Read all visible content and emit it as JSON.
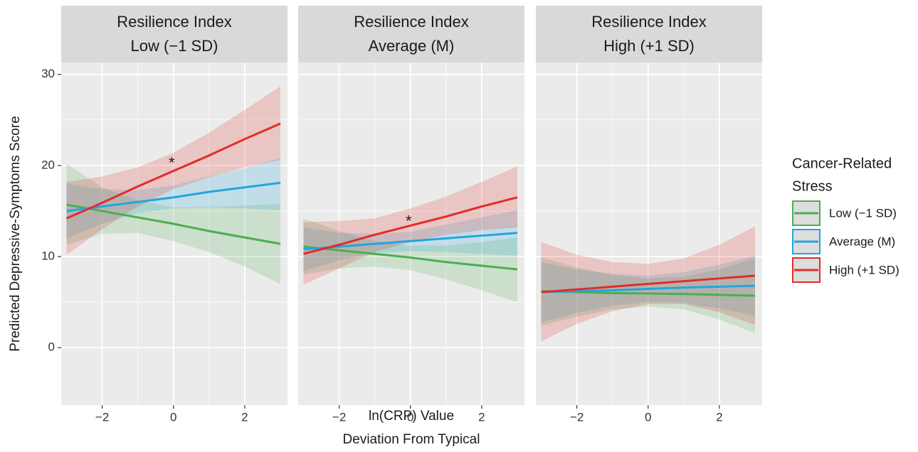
{
  "chart_data": {
    "type": "line",
    "y_label": "Predicted Depressive-Symptoms Score",
    "x_label": [
      "ln(CRP) Value",
      "Deviation From Typical"
    ],
    "legend_title": [
      "Cancer-Related",
      "Stress"
    ],
    "legend": "right",
    "grid": true,
    "xlim": [
      -3.15,
      3.2
    ],
    "ylim": [
      -6.3,
      31.3
    ],
    "xticks": [
      {
        "value": -2,
        "label": "−2"
      },
      0,
      2
    ],
    "yticks": [
      0,
      10,
      20,
      30
    ],
    "x": [
      -3,
      -2,
      -1,
      0,
      1,
      2,
      3
    ],
    "series": [
      {
        "name": "Low (−1 SD)",
        "color": "#4cae4f"
      },
      {
        "name": "Average (M)",
        "color": "#23a5de"
      },
      {
        "name": "High (+1 SD)",
        "color": "#e32b27"
      }
    ],
    "facets": [
      {
        "strip": [
          "Resilience Index",
          "Low (−1 SD)"
        ],
        "series": [
          {
            "values": [
              15.7,
              15.0,
              14.3,
              13.6,
              12.8,
              12.1,
              11.4
            ],
            "lower": [
              11.3,
              12.5,
              12.6,
              11.7,
              10.5,
              8.9,
              7.0
            ],
            "upper": [
              20.2,
              17.6,
              16.2,
              15.4,
              15.5,
              15.6,
              15.8
            ]
          },
          {
            "values": [
              15.0,
              15.5,
              16.0,
              16.5,
              17.1,
              17.6,
              18.1
            ],
            "lower": [
              12.0,
              13.6,
              14.8,
              15.3,
              15.4,
              15.3,
              15.1
            ],
            "upper": [
              18.0,
              17.4,
              17.3,
              17.8,
              18.8,
              19.7,
              20.8
            ]
          },
          {
            "values": [
              14.2,
              15.9,
              17.7,
              19.4,
              21.1,
              22.9,
              24.6
            ],
            "lower": [
              10.2,
              13.0,
              15.5,
              17.4,
              18.7,
              19.8,
              20.6
            ],
            "upper": [
              18.2,
              18.8,
              19.8,
              21.4,
              23.6,
              26.1,
              28.7
            ]
          }
        ],
        "annotation": {
          "text": "*",
          "x": -0.05,
          "y": 20.4
        }
      },
      {
        "strip": [
          "Resilience Index",
          "Average (M)"
        ],
        "series": [
          {
            "values": [
              11.1,
              10.7,
              10.3,
              9.9,
              9.4,
              9.0,
              8.6
            ],
            "lower": [
              8.0,
              8.7,
              8.9,
              8.5,
              7.5,
              6.3,
              5.0
            ],
            "upper": [
              14.2,
              12.8,
              11.7,
              11.2,
              11.2,
              11.6,
              12.1
            ]
          },
          {
            "values": [
              10.8,
              11.1,
              11.4,
              11.7,
              12.0,
              12.3,
              12.6
            ],
            "lower": [
              8.4,
              9.6,
              10.4,
              10.6,
              10.5,
              10.3,
              10.1
            ],
            "upper": [
              13.2,
              12.6,
              12.5,
              12.7,
              13.5,
              14.3,
              15.1
            ]
          },
          {
            "values": [
              10.3,
              11.3,
              12.4,
              13.4,
              14.4,
              15.5,
              16.5
            ],
            "lower": [
              6.9,
              8.7,
              10.5,
              11.6,
              12.4,
              12.9,
              13.2
            ],
            "upper": [
              13.8,
              13.9,
              14.2,
              15.3,
              16.6,
              18.2,
              19.9
            ]
          }
        ],
        "annotation": {
          "text": "*",
          "x": -0.05,
          "y": 14.0
        }
      },
      {
        "strip": [
          "Resilience Index",
          "High (+1 SD)"
        ],
        "series": [
          {
            "values": [
              6.2,
              6.1,
              6.0,
              5.95,
              5.9,
              5.8,
              5.7
            ],
            "lower": [
              2.4,
              3.4,
              4.2,
              4.5,
              4.2,
              3.1,
              1.6
            ],
            "upper": [
              9.9,
              8.8,
              8.0,
              7.6,
              7.8,
              8.6,
              9.8
            ]
          },
          {
            "values": [
              6.1,
              6.2,
              6.3,
              6.45,
              6.6,
              6.7,
              6.8
            ],
            "lower": [
              2.8,
              3.8,
              4.6,
              5.0,
              4.9,
              4.3,
              3.5
            ],
            "upper": [
              9.4,
              8.6,
              8.1,
              7.9,
              8.3,
              9.1,
              10.1
            ]
          },
          {
            "values": [
              6.1,
              6.4,
              6.7,
              7.0,
              7.3,
              7.6,
              7.9
            ],
            "lower": [
              0.7,
              2.6,
              4.0,
              4.8,
              4.8,
              3.9,
              2.5
            ],
            "upper": [
              11.6,
              10.2,
              9.4,
              9.2,
              9.8,
              11.3,
              13.3
            ]
          }
        ]
      }
    ]
  }
}
